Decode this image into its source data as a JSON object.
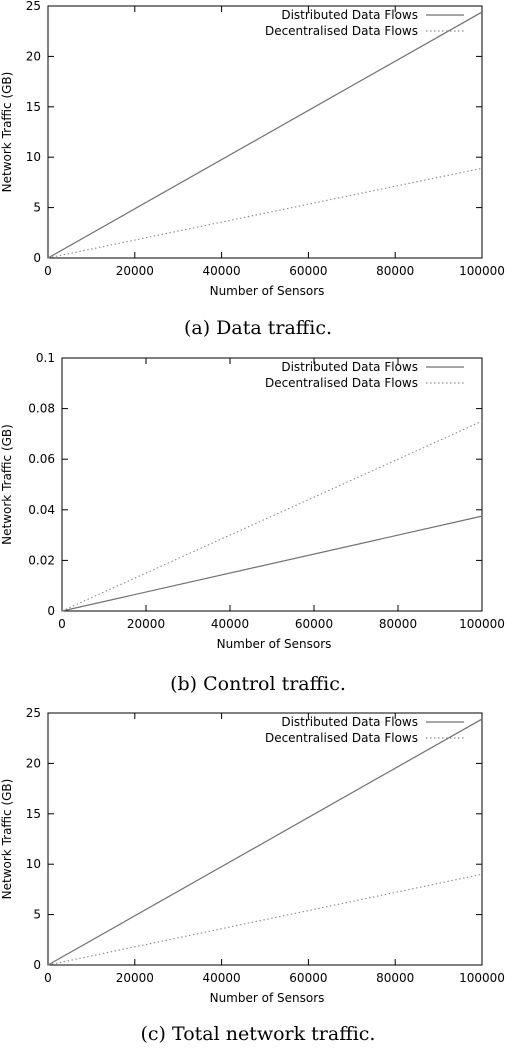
{
  "chart_data": [
    {
      "type": "line",
      "caption": "(a) Data traffic.",
      "xlabel": "Number of Sensors",
      "ylabel": "Network Traffic (GB)",
      "xlim": [
        0,
        100000
      ],
      "ylim": [
        0,
        25
      ],
      "xticks": [
        "0",
        "20000",
        "40000",
        "60000",
        "80000",
        "100000"
      ],
      "yticks": [
        "0",
        "5",
        "10",
        "15",
        "20",
        "25"
      ],
      "legend_position": "top-right",
      "grid": false,
      "series": [
        {
          "name": "Distributed Data Flows",
          "style": "solid",
          "color": "#707070",
          "x": [
            0,
            100000
          ],
          "y": [
            0,
            24.4
          ]
        },
        {
          "name": "Decentralised Data Flows",
          "style": "dotted",
          "color": "#8a8a8a",
          "x": [
            0,
            100000
          ],
          "y": [
            0,
            8.9
          ]
        }
      ]
    },
    {
      "type": "line",
      "caption": "(b) Control traffic.",
      "xlabel": "Number of Sensors",
      "ylabel": "Network Traffic (GB)",
      "xlim": [
        0,
        100000
      ],
      "ylim": [
        0,
        0.1
      ],
      "xticks": [
        "0",
        "20000",
        "40000",
        "60000",
        "80000",
        "100000"
      ],
      "yticks": [
        "0",
        "0.02",
        "0.04",
        "0.06",
        "0.08",
        "0.1"
      ],
      "legend_position": "top-right",
      "grid": false,
      "series": [
        {
          "name": "Distributed Data Flows",
          "style": "solid",
          "color": "#707070",
          "x": [
            0,
            100000
          ],
          "y": [
            0,
            0.0375
          ]
        },
        {
          "name": "Decentralised Data Flows",
          "style": "dotted",
          "color": "#8a8a8a",
          "x": [
            0,
            100000
          ],
          "y": [
            0,
            0.075
          ]
        }
      ]
    },
    {
      "type": "line",
      "caption": "(c) Total network traffic.",
      "xlabel": "Number of Sensors",
      "ylabel": "Network Traffic (GB)",
      "xlim": [
        0,
        100000
      ],
      "ylim": [
        0,
        25
      ],
      "xticks": [
        "0",
        "20000",
        "40000",
        "60000",
        "80000",
        "100000"
      ],
      "yticks": [
        "0",
        "5",
        "10",
        "15",
        "20",
        "25"
      ],
      "legend_position": "top-right",
      "grid": false,
      "series": [
        {
          "name": "Distributed Data Flows",
          "style": "solid",
          "color": "#707070",
          "x": [
            0,
            100000
          ],
          "y": [
            0,
            24.4
          ]
        },
        {
          "name": "Decentralised Data Flows",
          "style": "dotted",
          "color": "#8a8a8a",
          "x": [
            0,
            100000
          ],
          "y": [
            0,
            9.0
          ]
        }
      ]
    }
  ]
}
